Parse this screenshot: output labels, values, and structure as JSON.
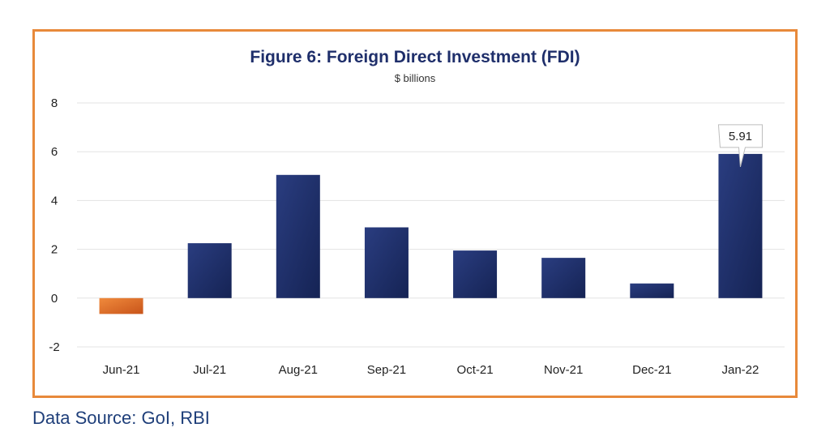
{
  "chart_data": {
    "type": "bar",
    "title": "Figure 6: Foreign Direct Investment (FDI)",
    "subtitle": "$ billions",
    "categories": [
      "Jun-21",
      "Jul-21",
      "Aug-21",
      "Sep-21",
      "Oct-21",
      "Nov-21",
      "Dec-21",
      "Jan-22"
    ],
    "values": [
      -0.65,
      2.25,
      5.05,
      2.9,
      1.95,
      1.65,
      0.6,
      5.91
    ],
    "ylim": [
      -2,
      8
    ],
    "yticks": [
      -2,
      0,
      2,
      4,
      6,
      8
    ],
    "grid": true,
    "annotation": {
      "category": "Jan-22",
      "text": "5.91"
    },
    "colors": {
      "positive": "#1c2d66",
      "negative": "#e06a1f",
      "frame": "#e8893a"
    }
  },
  "footer": {
    "source": "Data Source: GoI, RBI"
  }
}
